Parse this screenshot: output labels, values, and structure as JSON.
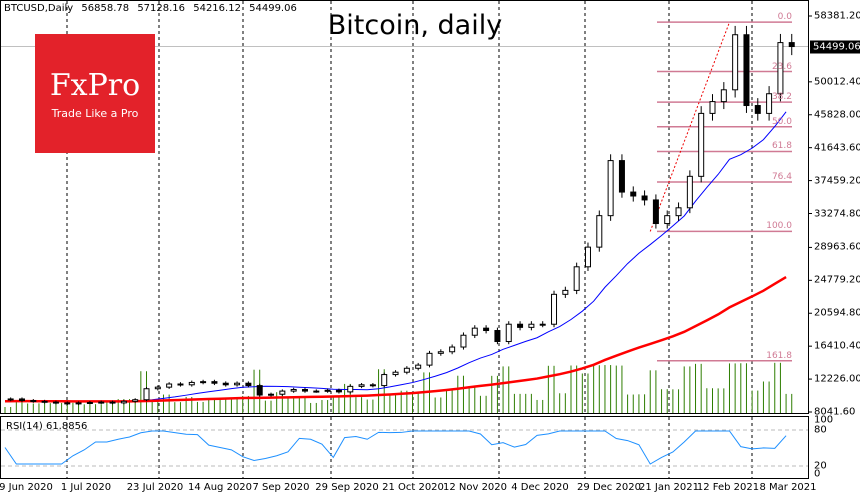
{
  "header": {
    "symbol": "BTCUSD,Daily",
    "open": "56858.78",
    "high": "57128.16",
    "low": "54216.12",
    "close": "54499.06"
  },
  "title": "Bitcoin, daily",
  "logo": {
    "brand": "FxPro",
    "tagline": "Trade Like a Pro",
    "color": "#e3222a"
  },
  "rsi": {
    "label": "RSI(14) 61.8856",
    "levels": [
      "100",
      "80",
      "20",
      "0"
    ]
  },
  "chart_data": {
    "type": "candlestick",
    "title": "Bitcoin, daily",
    "y_ticks": [
      "58381.20",
      "50012.40",
      "45828.00",
      "41643.60",
      "37459.20",
      "33274.80",
      "28963.60",
      "24779.20",
      "20594.80",
      "16410.40",
      "12226.00",
      "8041.60"
    ],
    "ylim": [
      8041.6,
      58381.2
    ],
    "current_price": "54499.06",
    "x_ticks": [
      "9 Jun 2020",
      "1 Jul 2020",
      "23 Jul 2020",
      "14 Aug 2020",
      "7 Sep 2020",
      "29 Sep 2020",
      "21 Oct 2020",
      "12 Nov 2020",
      "4 Dec 2020",
      "29 Dec 2020",
      "21 Jan 2021",
      "12 Feb 2021",
      "8 Mar 2021"
    ],
    "day_step": 4,
    "closes": [
      9700,
      9500,
      9400,
      9300,
      9200,
      9100,
      9200,
      9250,
      9300,
      9200,
      9400,
      9600,
      11000,
      11200,
      11600,
      11500,
      11800,
      11900,
      11700,
      11500,
      11700,
      11400,
      10200,
      10300,
      10700,
      10900,
      10700,
      10700,
      10800,
      10600,
      11300,
      11500,
      11400,
      12800,
      13100,
      13600,
      14000,
      15500,
      15700,
      16300,
      17800,
      18700,
      18400,
      17000,
      19200,
      18800,
      19200,
      19200,
      23000,
      23500,
      26500,
      29000,
      33000,
      40000,
      36000,
      35500,
      35000,
      32000,
      33000,
      34000,
      38000,
      46000,
      47500,
      49000,
      56000,
      47000,
      46000,
      48500,
      55000,
      54500
    ],
    "indicators": {
      "ma_fast": "blue",
      "ma_slow": "red",
      "rsi_period": 14
    },
    "fibonacci": {
      "high": 57600,
      "low": 31000,
      "levels": [
        "0.0",
        "23.6",
        "38.2",
        "50.0",
        "61.8",
        "76.4",
        "100.0",
        "161.8"
      ],
      "ratios": [
        0,
        0.236,
        0.382,
        0.5,
        0.618,
        0.764,
        1,
        1.618
      ]
    },
    "colors": {
      "fib": "#d07a94",
      "ma_fast": "#0000ff",
      "ma_slow": "#ff0000",
      "rsi": "#1e90ff",
      "volume": "#2e7d00"
    }
  }
}
